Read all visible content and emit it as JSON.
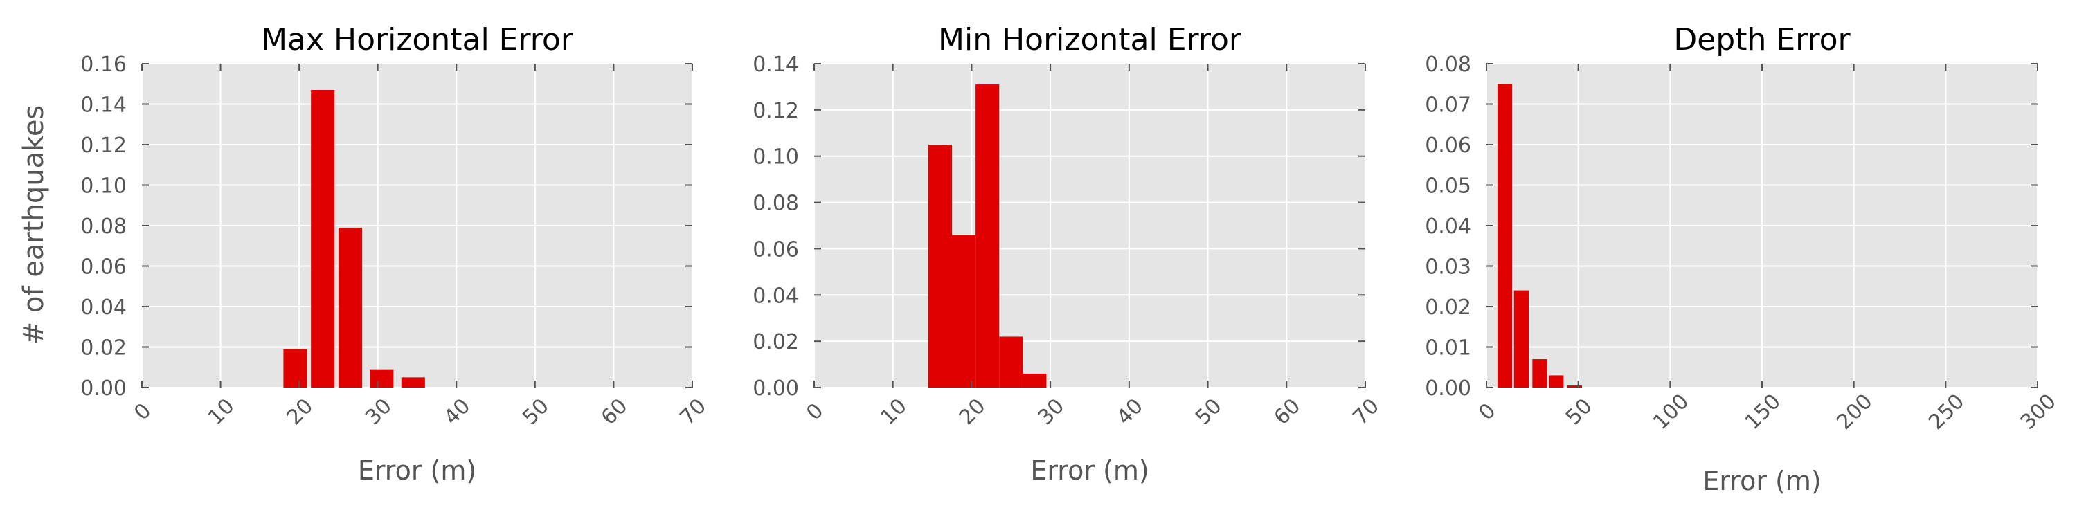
{
  "figure": {
    "ylabel": "# of earthquakes"
  },
  "colors": {
    "background": "#e5e5e5",
    "grid": "#ffffff",
    "bar": "#e00000",
    "text": "#555555",
    "title": "#000000"
  },
  "chart_data": [
    {
      "type": "bar",
      "title": "Max Horizontal Error",
      "xlabel": "Error (m)",
      "ylabel": "# of earthquakes",
      "xlim": [
        0,
        70
      ],
      "ylim": [
        0,
        0.16
      ],
      "xticks": [
        "0",
        "10",
        "20",
        "30",
        "40",
        "50",
        "60",
        "70"
      ],
      "yticks": [
        "0.00",
        "0.02",
        "0.04",
        "0.06",
        "0.08",
        "0.10",
        "0.12",
        "0.14",
        "0.16"
      ],
      "grid": true,
      "bins": [
        {
          "start": 18,
          "end": 21,
          "value": 0.019
        },
        {
          "start": 21.5,
          "end": 24.5,
          "value": 0.147
        },
        {
          "start": 25,
          "end": 28,
          "value": 0.079
        },
        {
          "start": 29,
          "end": 32,
          "value": 0.009
        },
        {
          "start": 33,
          "end": 36,
          "value": 0.005
        }
      ]
    },
    {
      "type": "bar",
      "title": "Min Horizontal Error",
      "xlabel": "Error (m)",
      "ylabel": "",
      "xlim": [
        0,
        70
      ],
      "ylim": [
        0,
        0.14
      ],
      "xticks": [
        "0",
        "10",
        "20",
        "30",
        "40",
        "50",
        "60",
        "70"
      ],
      "yticks": [
        "0.00",
        "0.02",
        "0.04",
        "0.06",
        "0.08",
        "0.10",
        "0.12",
        "0.14"
      ],
      "grid": true,
      "bins": [
        {
          "start": 14.5,
          "end": 17.5,
          "value": 0.105
        },
        {
          "start": 17.5,
          "end": 20.5,
          "value": 0.066
        },
        {
          "start": 20.5,
          "end": 23.5,
          "value": 0.131
        },
        {
          "start": 23.5,
          "end": 26.5,
          "value": 0.022
        },
        {
          "start": 26.5,
          "end": 29.5,
          "value": 0.006
        }
      ]
    },
    {
      "type": "bar",
      "title": "Depth Error",
      "xlabel": "Error (m)",
      "ylabel": "",
      "xlim": [
        0,
        300
      ],
      "ylim": [
        0,
        0.08
      ],
      "xticks": [
        "0",
        "50",
        "100",
        "150",
        "200",
        "250",
        "300"
      ],
      "yticks": [
        "0.00",
        "0.01",
        "0.02",
        "0.03",
        "0.04",
        "0.05",
        "0.06",
        "0.07",
        "0.08"
      ],
      "grid": true,
      "bins": [
        {
          "start": 6,
          "end": 14,
          "value": 0.075
        },
        {
          "start": 15,
          "end": 23,
          "value": 0.024
        },
        {
          "start": 25,
          "end": 33,
          "value": 0.007
        },
        {
          "start": 34,
          "end": 42,
          "value": 0.003
        },
        {
          "start": 44,
          "end": 52,
          "value": 0.0005
        }
      ]
    }
  ]
}
